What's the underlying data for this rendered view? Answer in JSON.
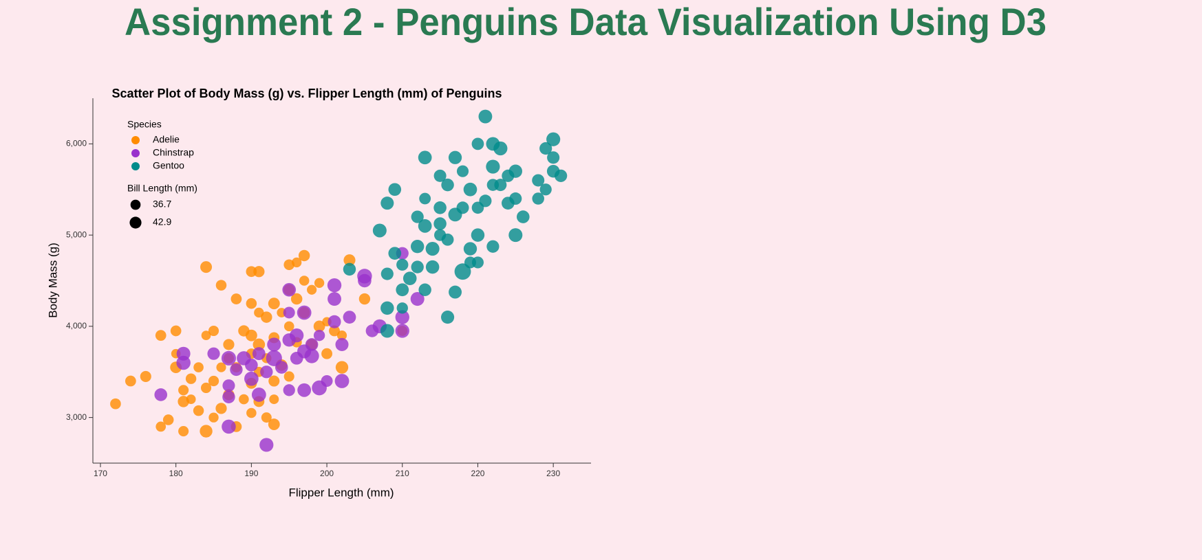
{
  "header": {
    "title": "Assignment 2 - Penguins Data Visualization Using D3"
  },
  "chart_data": {
    "type": "scatter",
    "title": "Scatter Plot of Body Mass (g) vs. Flipper Length (mm) of Penguins",
    "x_label": "Flipper Length (mm)",
    "y_label": "Body Mass (g)",
    "legend_title": "Species",
    "size_legend": {
      "title": "Bill Length (mm)",
      "values": [
        36.7,
        42.9
      ]
    },
    "xlim": [
      169,
      235
    ],
    "xticks": [
      170,
      180,
      190,
      200,
      210,
      220,
      230
    ],
    "ylim": [
      2500,
      6500
    ],
    "yticks": [
      {
        "value": 3000,
        "label": "3,000"
      },
      {
        "value": 4000,
        "label": "4,000"
      },
      {
        "value": 5000,
        "label": "5,000"
      },
      {
        "value": 6000,
        "label": "6,000"
      }
    ],
    "series": [
      {
        "name": "Adelie",
        "color": "#ff8c00",
        "x": [
          172,
          174,
          176,
          178,
          178,
          179,
          180,
          180,
          180,
          181,
          181,
          181,
          182,
          182,
          183,
          183,
          184,
          184,
          184,
          184,
          185,
          185,
          185,
          186,
          186,
          186,
          187,
          187,
          187,
          188,
          188,
          188,
          189,
          189,
          190,
          190,
          190,
          190,
          190,
          190,
          191,
          191,
          191,
          191,
          191,
          192,
          192,
          192,
          193,
          193,
          193,
          193,
          193,
          194,
          194,
          195,
          195,
          195,
          195,
          196,
          196,
          196,
          197,
          197,
          197,
          198,
          198,
          199,
          199,
          200,
          200,
          201,
          202,
          202,
          203,
          205,
          210
        ],
        "values": [
          3150,
          3400,
          3450,
          2900,
          3900,
          2975,
          3950,
          3700,
          3550,
          3300,
          2850,
          3175,
          3425,
          3200,
          3550,
          3075,
          4650,
          3900,
          2850,
          3325,
          3950,
          3000,
          3400,
          4450,
          3550,
          3100,
          3800,
          3650,
          3250,
          4300,
          3550,
          2900,
          3950,
          3200,
          4600,
          4250,
          3900,
          3700,
          3375,
          3050,
          4600,
          4150,
          3800,
          3500,
          3175,
          4100,
          3000,
          3650,
          4250,
          3875,
          3400,
          3200,
          2925,
          4150,
          3575,
          4675,
          4400,
          4000,
          3450,
          4700,
          4300,
          3825,
          4775,
          4500,
          4150,
          4400,
          3800,
          4475,
          4000,
          4050,
          3700,
          3950,
          3550,
          3900,
          4725,
          4300,
          3950
        ],
        "sizes": [
          39.1,
          39.5,
          40.3,
          36.7,
          39.3,
          38.9,
          39.2,
          34.1,
          42.0,
          37.8,
          37.8,
          41.1,
          38.6,
          34.6,
          36.6,
          38.7,
          42.5,
          34.4,
          46.0,
          37.8,
          37.7,
          35.9,
          38.2,
          38.8,
          35.3,
          40.6,
          40.5,
          37.9,
          40.5,
          39.5,
          37.2,
          39.5,
          40.9,
          36.4,
          39.2,
          38.8,
          42.2,
          37.6,
          39.8,
          36.5,
          40.8,
          36.0,
          44.1,
          37.0,
          39.6,
          41.1,
          37.5,
          36.0,
          42.3,
          39.6,
          40.1,
          35.0,
          42.0,
          34.5,
          41.4,
          39.0,
          40.6,
          36.5,
          37.6,
          35.7,
          41.3,
          37.6,
          41.1,
          36.4,
          41.6,
          35.5,
          41.1,
          35.9,
          41.8,
          33.5,
          39.7,
          39.6,
          45.8,
          35.5,
          42.8,
          40.9,
          37.2
        ]
      },
      {
        "name": "Chinstrap",
        "color": "#9932cc",
        "x": [
          178,
          181,
          181,
          185,
          187,
          187,
          187,
          187,
          188,
          189,
          190,
          190,
          191,
          191,
          192,
          192,
          193,
          193,
          194,
          195,
          195,
          195,
          195,
          196,
          196,
          197,
          197,
          197,
          198,
          198,
          199,
          199,
          200,
          201,
          201,
          201,
          202,
          202,
          203,
          205,
          205,
          206,
          207,
          210,
          210,
          210,
          212
        ],
        "values": [
          3250,
          3700,
          3600,
          3700,
          3650,
          3350,
          3225,
          2900,
          3525,
          3650,
          3575,
          3425,
          3700,
          3250,
          3500,
          2700,
          3800,
          3650,
          3550,
          4400,
          4150,
          3850,
          3300,
          3900,
          3650,
          4150,
          3725,
          3300,
          3800,
          3675,
          3900,
          3325,
          3400,
          4450,
          4300,
          4050,
          3800,
          3400,
          4100,
          4550,
          4500,
          3950,
          4000,
          4800,
          4100,
          3950,
          4300
        ],
        "sizes": [
          46.5,
          50.0,
          51.3,
          45.4,
          52.7,
          45.2,
          46.1,
          51.3,
          46.0,
          51.3,
          46.6,
          51.7,
          47.0,
          52.0,
          45.9,
          50.5,
          50.3,
          58.0,
          46.4,
          49.2,
          42.4,
          48.5,
          43.2,
          50.6,
          46.7,
          52.0,
          50.5,
          49.5,
          46.4,
          52.8,
          40.9,
          54.2,
          42.5,
          51.0,
          49.7,
          47.5,
          47.6,
          52.0,
          46.9,
          53.5,
          49.0,
          46.2,
          50.9,
          45.5,
          50.9,
          50.8,
          50.1
        ]
      },
      {
        "name": "Gentoo",
        "color": "#008b8b",
        "x": [
          203,
          207,
          208,
          208,
          208,
          209,
          208,
          209,
          210,
          210,
          210,
          211,
          212,
          212,
          212,
          213,
          213,
          213,
          213,
          214,
          214,
          215,
          215,
          215,
          215,
          216,
          216,
          216,
          217,
          217,
          217,
          218,
          218,
          218,
          219,
          219,
          219,
          220,
          220,
          220,
          220,
          221,
          221,
          222,
          222,
          222,
          222,
          223,
          223,
          224,
          224,
          225,
          225,
          225,
          226,
          228,
          228,
          229,
          229,
          230,
          230,
          230,
          231
        ],
        "values": [
          4625,
          5050,
          4200,
          3950,
          5350,
          5500,
          4575,
          4800,
          4675,
          4400,
          4200,
          4525,
          5200,
          4875,
          4650,
          5850,
          5400,
          5100,
          4400,
          4650,
          4850,
          5650,
          5300,
          5125,
          5000,
          5550,
          4950,
          4100,
          5850,
          5225,
          4375,
          5700,
          5300,
          4600,
          5500,
          4850,
          4700,
          6000,
          5300,
          5000,
          4700,
          6300,
          5375,
          6000,
          5750,
          5550,
          4875,
          5950,
          5550,
          5650,
          5350,
          5700,
          5400,
          5000,
          5200,
          5600,
          5400,
          5950,
          5500,
          6050,
          5850,
          5700,
          5650
        ],
        "sizes": [
          46.1,
          50.0,
          48.7,
          50.0,
          47.6,
          46.5,
          45.4,
          46.7,
          43.3,
          46.8,
          40.9,
          49.0,
          45.5,
          48.4,
          45.8,
          49.3,
          42.0,
          49.2,
          46.2,
          48.7,
          50.2,
          45.1,
          46.5,
          46.3,
          42.9,
          46.1,
          44.5,
          47.8,
          48.2,
          50.0,
          47.3,
          42.8,
          45.1,
          59.6,
          49.1,
          48.4,
          42.6,
          44.4,
          44.0,
          48.7,
          42.7,
          49.6,
          45.3,
          49.6,
          50.5,
          43.6,
          45.5,
          50.5,
          44.9,
          45.2,
          46.6,
          48.5,
          45.1,
          50.1,
          46.5,
          45.0,
          43.8,
          45.5,
          43.2,
          50.4,
          45.3,
          46.2,
          45.7
        ]
      }
    ]
  }
}
